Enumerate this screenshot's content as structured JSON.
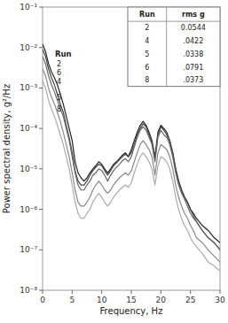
{
  "chart_data": {
    "type": "line",
    "xlabel": "Frequency, Hz",
    "ylabel": "Power spectral density, g²/Hz",
    "log": "y",
    "grid": false,
    "xlim": [
      0,
      30
    ],
    "xticks": [
      0,
      5,
      10,
      15,
      20,
      25,
      30
    ],
    "ylim": [
      1e-08,
      0.1
    ],
    "yticks": [
      {
        "value": 1e-08,
        "label": "10⁻⁸"
      },
      {
        "value": 1e-07,
        "label": "10⁻⁷"
      },
      {
        "value": 1e-06,
        "label": "10⁻⁶"
      },
      {
        "value": 1e-05,
        "label": "10⁻⁵"
      },
      {
        "value": 0.0001,
        "label": "10⁻⁴"
      },
      {
        "value": 0.001,
        "label": "10⁻³"
      },
      {
        "value": 0.01,
        "label": "10⁻²"
      },
      {
        "value": 0.1,
        "label": "10⁻¹"
      }
    ],
    "x": [
      0,
      0.5,
      1,
      1.5,
      2,
      2.5,
      3,
      3.5,
      4,
      4.5,
      5,
      5.5,
      6,
      6.5,
      7,
      7.5,
      8,
      8.5,
      9,
      9.5,
      10,
      10.5,
      11,
      11.5,
      12,
      12.5,
      13,
      13.5,
      14,
      14.5,
      15,
      15.5,
      16,
      16.5,
      17,
      17.5,
      18,
      18.5,
      19,
      19.5,
      20,
      20.5,
      21,
      21.5,
      22,
      22.5,
      23,
      23.5,
      24,
      24.5,
      25,
      25.5,
      26,
      27,
      28,
      29,
      30
    ],
    "series": [
      {
        "name": "2",
        "color": "#222222",
        "values": [
          0.012,
          0.008,
          0.004,
          0.0025,
          0.0018,
          0.0012,
          0.0007,
          0.0004,
          0.0002,
          0.0001,
          5e-05,
          1.5e-05,
          8e-06,
          6e-06,
          5e-06,
          6e-06,
          8e-06,
          1e-05,
          1.2e-05,
          1.5e-05,
          1.3e-05,
          1e-05,
          8e-06,
          1e-05,
          1.3e-05,
          1.5e-05,
          1.8e-05,
          2.2e-05,
          2.5e-05,
          2e-05,
          3e-05,
          5e-05,
          8e-05,
          0.00012,
          0.00015,
          0.00012,
          8e-05,
          5e-05,
          2e-05,
          8e-05,
          0.00012,
          0.0001,
          8e-05,
          5e-05,
          2.5e-05,
          1e-05,
          5e-06,
          3e-06,
          2e-06,
          1.5e-06,
          1e-06,
          8e-07,
          6e-07,
          4e-07,
          3e-07,
          2e-07,
          1.5e-07
        ]
      },
      {
        "name": "6",
        "color": "#444444",
        "values": [
          0.009,
          0.006,
          0.003,
          0.0018,
          0.0012,
          0.0007,
          0.0004,
          0.00025,
          0.00012,
          6e-05,
          2.5e-05,
          9e-06,
          5e-06,
          4e-06,
          4e-06,
          5e-06,
          7e-06,
          9e-06,
          1.1e-05,
          1.3e-05,
          1.2e-05,
          9e-06,
          7e-06,
          9e-06,
          1.2e-05,
          1.4e-05,
          1.7e-05,
          2e-05,
          2.3e-05,
          2e-05,
          2.5e-05,
          4e-05,
          7e-05,
          0.0001,
          0.00013,
          0.00011,
          7e-05,
          4.5e-05,
          1.8e-05,
          7e-05,
          0.00011,
          9e-05,
          7e-05,
          5e-05,
          2.5e-05,
          1e-05,
          5e-06,
          3e-06,
          2e-06,
          1.5e-06,
          1e-06,
          7e-07,
          5e-07,
          3e-07,
          2e-07,
          1.5e-07,
          1e-07
        ]
      },
      {
        "name": "4",
        "color": "#666666",
        "values": [
          0.006,
          0.004,
          0.002,
          0.0012,
          0.0008,
          0.0005,
          0.0003,
          0.0002,
          0.0001,
          5e-05,
          2e-05,
          8e-06,
          4e-06,
          3e-06,
          3e-06,
          4e-06,
          5e-06,
          7e-06,
          8e-06,
          1e-05,
          9e-06,
          7e-06,
          5e-06,
          7e-06,
          9e-06,
          1.1e-05,
          1.3e-05,
          1.6e-05,
          1.8e-05,
          1.5e-05,
          2e-05,
          3.5e-05,
          6e-05,
          9e-05,
          0.00011,
          9e-05,
          6e-05,
          4e-05,
          1.5e-05,
          6e-05,
          9e-05,
          7e-05,
          6e-05,
          4e-05,
          2e-05,
          8e-06,
          4e-06,
          2.5e-06,
          1.8e-06,
          1.2e-06,
          8e-07,
          6e-07,
          5e-07,
          3e-07,
          2e-07,
          1.5e-07,
          1e-07
        ]
      },
      {
        "name": "5",
        "color": "#888888",
        "values": [
          0.003,
          0.002,
          0.001,
          0.0006,
          0.0004,
          0.00025,
          0.00015,
          8e-05,
          4e-05,
          2e-05,
          8e-06,
          3e-06,
          1.5e-06,
          1.2e-06,
          1.2e-06,
          1.5e-06,
          2e-06,
          3e-06,
          4e-06,
          5e-06,
          4e-06,
          3e-06,
          2.5e-06,
          3e-06,
          4e-06,
          5e-06,
          6e-06,
          7e-06,
          8e-06,
          7e-06,
          9e-06,
          1.5e-05,
          2.5e-05,
          4e-05,
          5e-05,
          4e-05,
          3e-05,
          2e-05,
          7e-06,
          2.5e-05,
          4e-05,
          3.5e-05,
          3e-05,
          2e-05,
          1e-05,
          4e-06,
          2e-06,
          1.2e-06,
          8e-07,
          6e-07,
          4e-07,
          3e-07,
          2e-07,
          1.5e-07,
          1e-07,
          7e-08,
          5e-08
        ]
      },
      {
        "name": "8",
        "color": "#aaaaaa",
        "values": [
          0.0015,
          0.001,
          0.0005,
          0.0003,
          0.0002,
          0.00012,
          7e-05,
          4e-05,
          2e-05,
          1e-05,
          4e-06,
          1.5e-06,
          8e-07,
          6e-07,
          6e-07,
          8e-07,
          1e-06,
          1.5e-06,
          2e-06,
          2.5e-06,
          2e-06,
          1.5e-06,
          1.2e-06,
          1.5e-06,
          2e-06,
          2.5e-06,
          3e-06,
          3.5e-06,
          4e-06,
          3.5e-06,
          4.5e-06,
          8e-06,
          1.3e-05,
          2e-05,
          2.5e-05,
          2e-05,
          1.5e-05,
          1e-05,
          4e-06,
          1.2e-05,
          2e-05,
          1.8e-05,
          1.5e-05,
          1e-05,
          5e-06,
          2e-06,
          1e-06,
          6e-07,
          4e-07,
          3e-07,
          2e-07,
          1.5e-07,
          1.2e-07,
          8e-08,
          5e-08,
          4e-08,
          3e-08
        ]
      }
    ],
    "annotations": [
      "Run"
    ],
    "table": {
      "columns": [
        "Run",
        "rms g"
      ],
      "rows": [
        [
          2,
          "0.0544"
        ],
        [
          4,
          ".0422"
        ],
        [
          5,
          ".0338"
        ],
        [
          6,
          ".0791"
        ],
        [
          8,
          ".0373"
        ]
      ]
    }
  }
}
